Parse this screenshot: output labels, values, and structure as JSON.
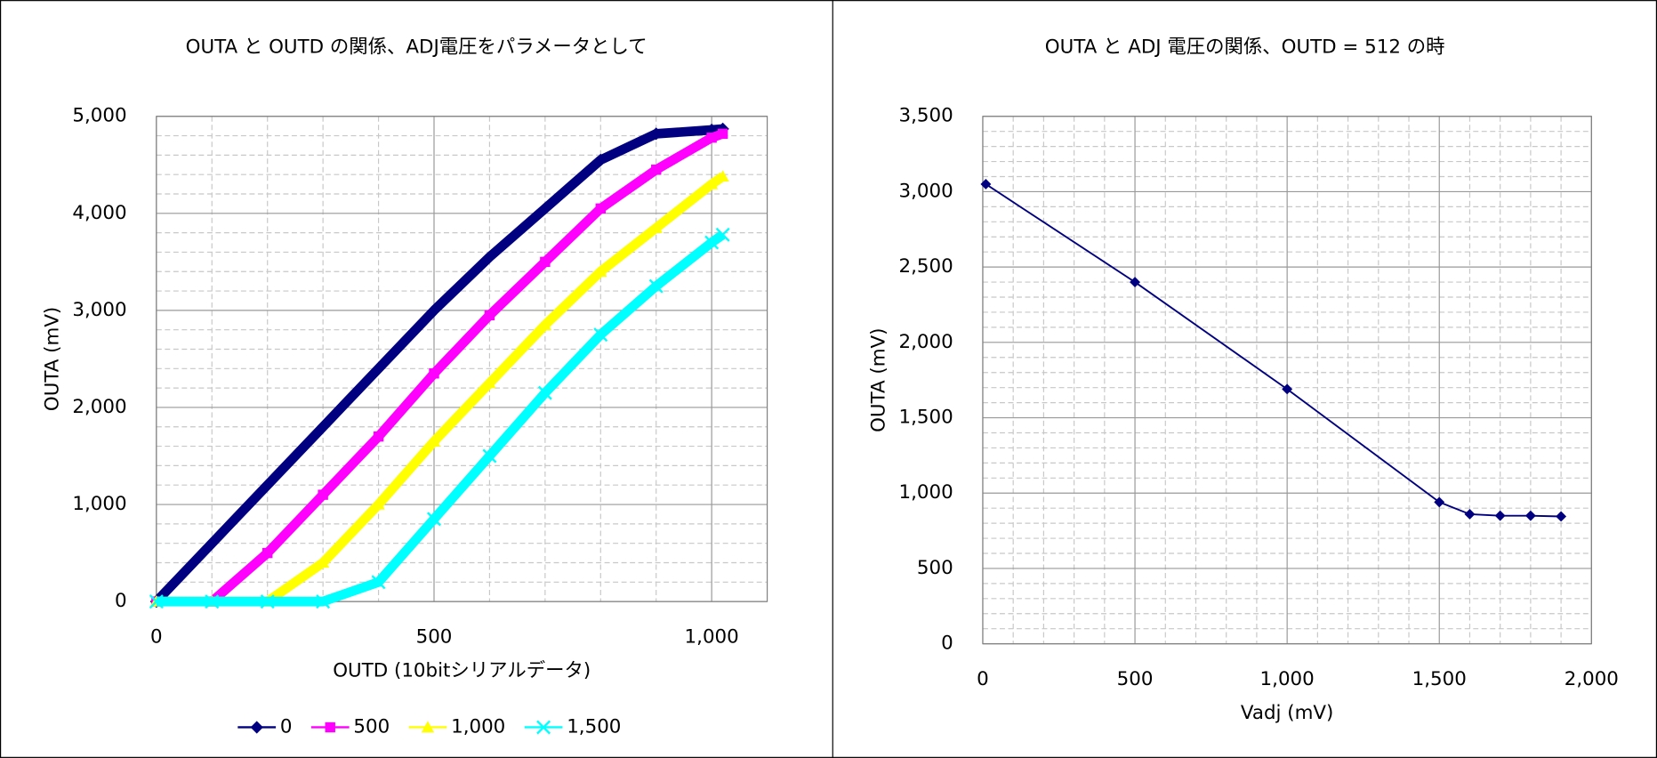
{
  "chart_data": [
    {
      "type": "line",
      "title": "OUTA と OUTD の関係、ADJ電圧をパラメータとして",
      "x_label": "OUTD (10bitシリアルデータ)",
      "y_label": "OUTA (mV)",
      "x": [
        0,
        100,
        200,
        300,
        400,
        500,
        600,
        700,
        800,
        900,
        1000,
        1020
      ],
      "series": [
        {
          "name": "0",
          "color": "#000080",
          "marker": "diamond",
          "values": [
            0,
            600,
            1200,
            1800,
            2400,
            3000,
            3550,
            4050,
            4550,
            4820,
            4860,
            4870
          ]
        },
        {
          "name": "500",
          "color": "#ff00ff",
          "marker": "square",
          "values": [
            0,
            0,
            500,
            1100,
            1700,
            2350,
            2950,
            3500,
            4050,
            4450,
            4780,
            4820
          ]
        },
        {
          "name": "1,000",
          "color": "#ffff00",
          "marker": "triangle",
          "values": [
            0,
            0,
            0,
            400,
            1000,
            1650,
            2250,
            2850,
            3400,
            3850,
            4300,
            4380
          ]
        },
        {
          "name": "1,500",
          "color": "#00ffff",
          "marker": "x",
          "values": [
            0,
            0,
            0,
            0,
            200,
            850,
            1500,
            2150,
            2750,
            3250,
            3700,
            3780
          ]
        }
      ],
      "xlim": [
        0,
        1100
      ],
      "xticks": [
        0,
        500,
        {
          "value": 1000,
          "label": "1,000"
        }
      ],
      "ylim": [
        0,
        5000
      ],
      "yticks": [
        0,
        {
          "value": 1000,
          "label": "1,000"
        },
        {
          "value": 2000,
          "label": "2,000"
        },
        {
          "value": 3000,
          "label": "3,000"
        },
        {
          "value": 4000,
          "label": "4,000"
        },
        {
          "value": 5000,
          "label": "5,000"
        }
      ],
      "grid": true,
      "thick": true,
      "legend": "bottom"
    },
    {
      "type": "line",
      "title": "OUTA と ADJ 電圧の関係、OUTD = 512 の時",
      "x_label": "Vadj (mV)",
      "y_label": "OUTA (mV)",
      "x": [
        10,
        500,
        1000,
        1500,
        1600,
        1700,
        1800,
        1900
      ],
      "series": [
        {
          "color": "#000080",
          "marker": "diamond",
          "values": [
            3050,
            2400,
            1690,
            940,
            860,
            850,
            850,
            845
          ]
        }
      ],
      "xlim": [
        0,
        2000
      ],
      "xticks": [
        0,
        500,
        {
          "value": 1000,
          "label": "1,000"
        },
        {
          "value": 1500,
          "label": "1,500"
        },
        {
          "value": 2000,
          "label": "2,000"
        }
      ],
      "ylim": [
        0,
        3500
      ],
      "yticks": [
        0,
        500,
        {
          "value": 1000,
          "label": "1,000"
        },
        {
          "value": 1500,
          "label": "1,500"
        },
        {
          "value": 2000,
          "label": "2,000"
        },
        {
          "value": 2500,
          "label": "2,500"
        },
        {
          "value": 3000,
          "label": "3,000"
        },
        {
          "value": 3500,
          "label": "3,500"
        }
      ],
      "grid": true,
      "thick": false
    }
  ]
}
